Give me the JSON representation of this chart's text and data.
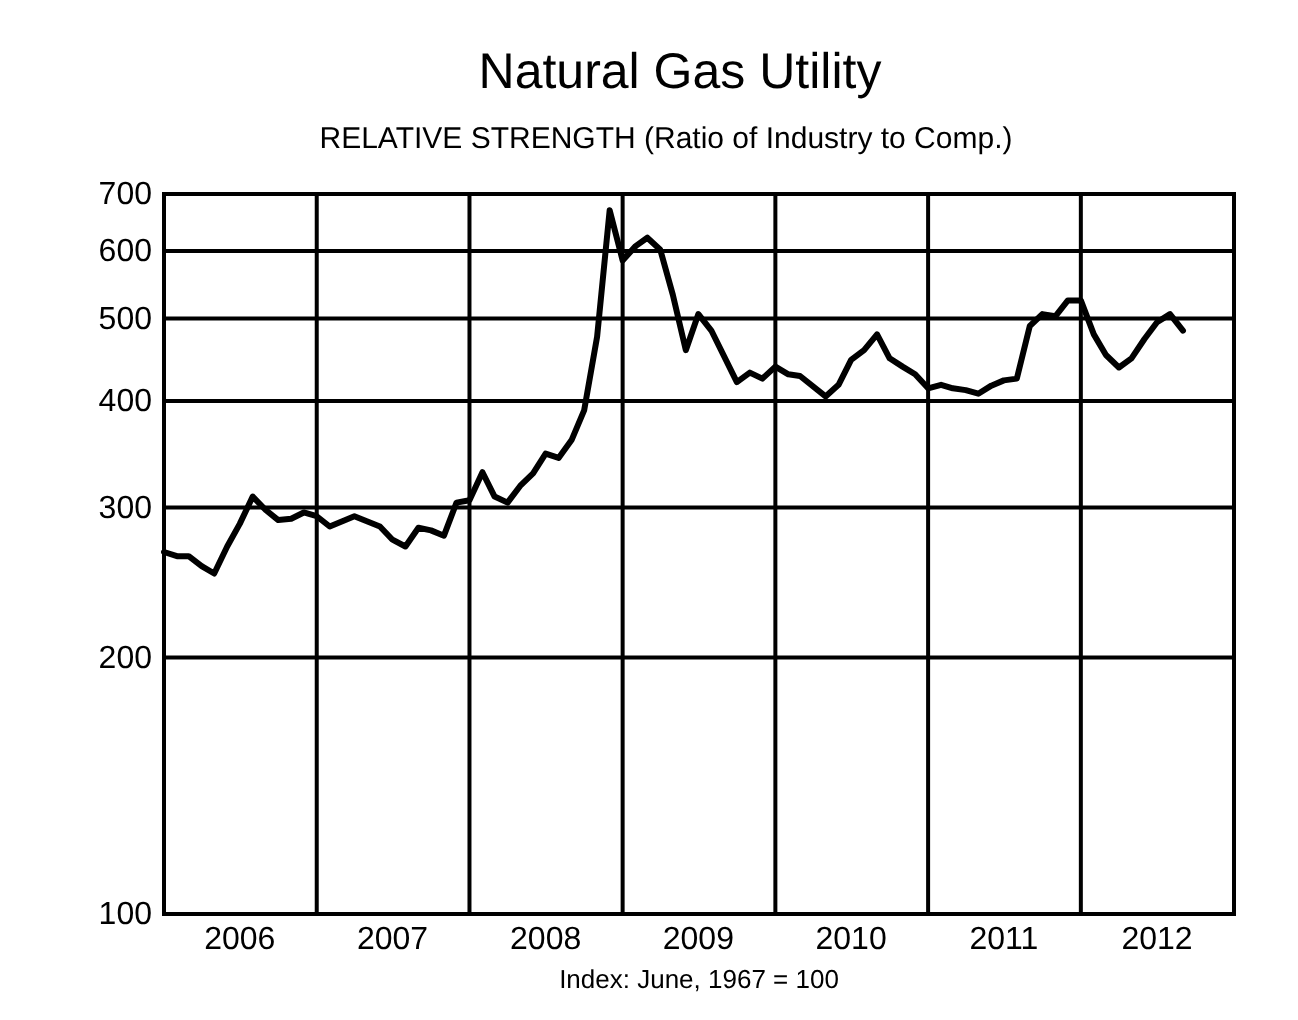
{
  "chart_data": {
    "type": "line",
    "title": "Natural Gas Utility",
    "subtitle": "RELATIVE STRENGTH (Ratio of Industry to Comp.)",
    "annotations": [
      "Index: June, 1967 = 100"
    ],
    "log": true,
    "grid": true,
    "marker": "none",
    "line_style": "solid",
    "xlim": [
      "2006-01",
      "2013-01"
    ],
    "xticks": [
      {
        "value": "2006-07",
        "label": "2006"
      },
      {
        "value": "2007-01",
        "label": null
      },
      {
        "value": "2007-07",
        "label": "2007"
      },
      {
        "value": "2008-01",
        "label": null
      },
      {
        "value": "2008-07",
        "label": "2008"
      },
      {
        "value": "2009-01",
        "label": null
      },
      {
        "value": "2009-07",
        "label": "2009"
      },
      {
        "value": "2010-01",
        "label": null
      },
      {
        "value": "2010-07",
        "label": "2010"
      },
      {
        "value": "2011-01",
        "label": null
      },
      {
        "value": "2011-07",
        "label": "2011"
      },
      {
        "value": "2012-01",
        "label": null
      },
      {
        "value": "2012-07",
        "label": "2012"
      }
    ],
    "ylim": [
      100,
      700
    ],
    "yticks": [
      100,
      200,
      300,
      400,
      500,
      600,
      700
    ],
    "x": [
      "2006-01",
      "2006-02",
      "2006-03",
      "2006-04",
      "2006-05",
      "2006-06",
      "2006-07",
      "2006-08",
      "2006-09",
      "2006-10",
      "2006-11",
      "2006-12",
      "2007-01",
      "2007-02",
      "2007-04",
      "2007-06",
      "2007-07",
      "2007-08",
      "2007-09",
      "2007-10",
      "2007-11",
      "2007-12",
      "2008-01",
      "2008-02",
      "2008-03",
      "2008-04",
      "2008-05",
      "2008-06",
      "2008-07",
      "2008-08",
      "2008-09",
      "2008-10",
      "2008-11",
      "2008-12",
      "2009-01",
      "2009-02",
      "2009-03",
      "2009-04",
      "2009-05",
      "2009-06",
      "2009-07",
      "2009-08",
      "2009-10",
      "2009-11",
      "2009-12",
      "2010-01",
      "2010-02",
      "2010-03",
      "2010-05",
      "2010-06",
      "2010-07",
      "2010-08",
      "2010-09",
      "2010-10",
      "2010-11",
      "2010-12",
      "2011-01",
      "2011-02",
      "2011-03",
      "2011-04",
      "2011-05",
      "2011-06",
      "2011-07",
      "2011-08",
      "2011-09",
      "2011-10",
      "2011-11",
      "2011-12",
      "2012-01",
      "2012-02",
      "2012-03",
      "2012-04",
      "2012-05",
      "2012-06",
      "2012-07",
      "2012-08",
      "2012-09"
    ],
    "series": [
      {
        "color": "#000000",
        "values": [
          266,
          263,
          263,
          256,
          251,
          270,
          287,
          309,
          298,
          290,
          291,
          296,
          293,
          285,
          293,
          285,
          275,
          270,
          284,
          282,
          278,
          304,
          306,
          330,
          309,
          304,
          318,
          329,
          347,
          343,
          360,
          390,
          476,
          670,
          585,
          608,
          622,
          602,
          533,
          459,
          506,
          484,
          421,
          432,
          425,
          439,
          430,
          428,
          405,
          418,
          447,
          459,
          479,
          449,
          439,
          430,
          414,
          418,
          414,
          412,
          408,
          417,
          423,
          425,
          490,
          506,
          503,
          525,
          525,
          479,
          453,
          438,
          449,
          473,
          495,
          506,
          484
        ]
      }
    ]
  }
}
